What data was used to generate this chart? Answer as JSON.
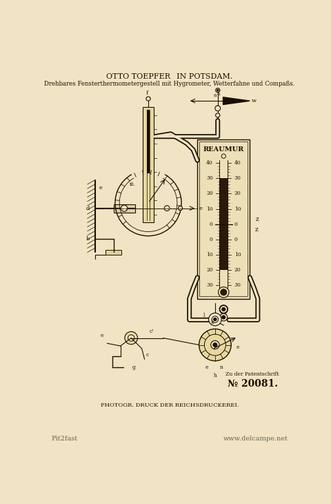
{
  "bg_color": "#f0e4c4",
  "title_line1": "OTTO TOEPFER  IN POTSDAM.",
  "title_line2": "Drehbares Fensterthermometergestell mit Hygrometer, Wetterfahne und Compaßs.",
  "footer_line1": "PHOTOGR. DRUCK DER REICHSDRUCKEREI.",
  "patent_label": "Zu der Patentschrift",
  "patent_number": "№ 20081.",
  "watermark_left": "Pit2fast",
  "watermark_right": "www.delcampe.net",
  "line_color": "#1a0f00",
  "paper_color": "#f0e4c4"
}
